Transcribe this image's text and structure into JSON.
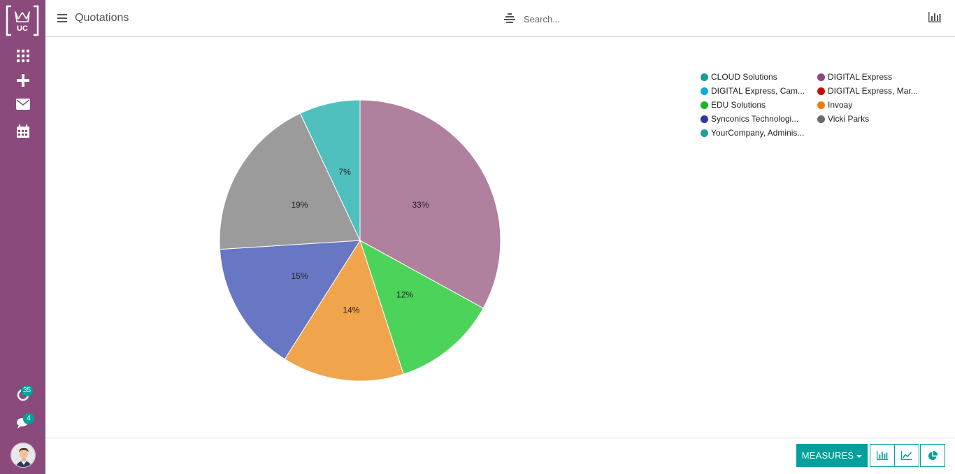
{
  "app": {
    "logo_text": "UC"
  },
  "sidebar": {
    "items": [
      {
        "name": "apps",
        "icon": "grid-icon"
      },
      {
        "name": "create",
        "icon": "plus-icon"
      },
      {
        "name": "messages",
        "icon": "envelope-icon"
      },
      {
        "name": "calendar",
        "icon": "calendar-icon"
      }
    ],
    "activities_count": "35",
    "chat_count": "4"
  },
  "header": {
    "title": "Quotations",
    "search_placeholder": "Search..."
  },
  "chart_data": {
    "type": "pie",
    "title": "",
    "slices": [
      {
        "label": "DIGITAL Express",
        "value": 33,
        "display": "33%",
        "color": "#b0809f"
      },
      {
        "label": "EDU Solutions",
        "value": 12,
        "display": "12%",
        "color": "#4cd35a"
      },
      {
        "label": "Invoay",
        "value": 14,
        "display": "14%",
        "color": "#f0a44b"
      },
      {
        "label": "Synconics Technologi...",
        "value": 15,
        "display": "15%",
        "color": "#6777c4"
      },
      {
        "label": "Vicki Parks",
        "value": 19,
        "display": "19%",
        "color": "#9b9b9b"
      },
      {
        "label": "YourCompany, Adminis...",
        "value": 7,
        "display": "7%",
        "color": "#4fc0bd"
      }
    ],
    "legend_position": "top-right",
    "legend": [
      {
        "label": "CLOUD Solutions",
        "color": "#1a9c96"
      },
      {
        "label": "DIGITAL Express",
        "color": "#874a7b"
      },
      {
        "label": "DIGITAL Express, Cam...",
        "color": "#0da9dd"
      },
      {
        "label": "DIGITAL Express, Mar...",
        "color": "#cc0a0a"
      },
      {
        "label": "EDU Solutions",
        "color": "#18b728"
      },
      {
        "label": "Invoay",
        "color": "#ef7d0c"
      },
      {
        "label": "Synconics Technologi...",
        "color": "#2a3aa0"
      },
      {
        "label": "Vicki Parks",
        "color": "#6b6b6b"
      },
      {
        "label": "YourCompany, Adminis...",
        "color": "#1c9f9b"
      }
    ]
  },
  "footer": {
    "measures_label": "MEASURES",
    "view_modes": [
      {
        "name": "bar-chart",
        "icon": "bar-chart-icon"
      },
      {
        "name": "line-chart",
        "icon": "line-chart-icon"
      },
      {
        "name": "pie-chart",
        "icon": "pie-chart-icon"
      }
    ]
  },
  "colors": {
    "sidebar": "#8a4a7b",
    "accent": "#00a09d"
  }
}
